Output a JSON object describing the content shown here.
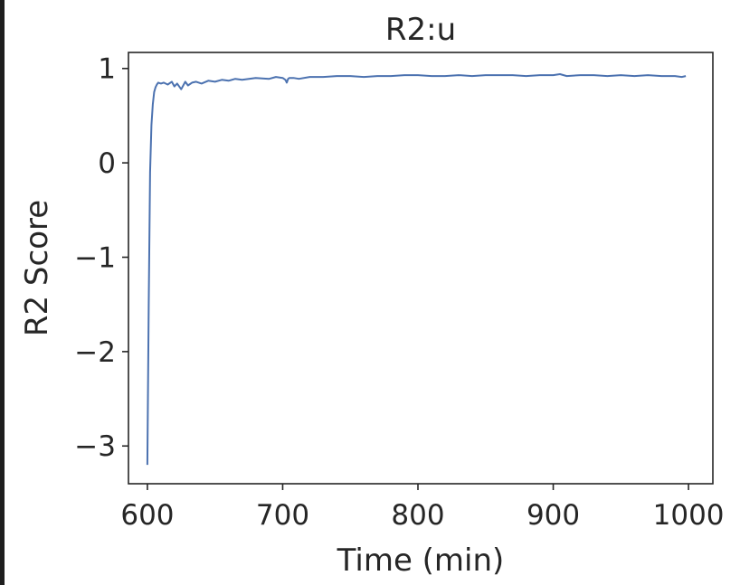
{
  "chart_data": {
    "type": "line",
    "title": "R2:u",
    "xlabel": "Time (min)",
    "ylabel": "R2 Score",
    "xlim": [
      586,
      1018
    ],
    "ylim": [
      -3.4,
      1.17
    ],
    "x_ticks": [
      600,
      700,
      800,
      900,
      1000
    ],
    "x_tick_labels": [
      "600",
      "700",
      "800",
      "900",
      "1000"
    ],
    "y_ticks": [
      1,
      0,
      -1,
      -2,
      -3
    ],
    "y_tick_labels": [
      "1",
      "0",
      "−1",
      "−2",
      "−3"
    ],
    "grid": false,
    "legend": "none",
    "line_color": "#4c72b0",
    "series": [
      {
        "x": [
          600,
          601,
          602,
          603,
          604,
          605,
          606,
          607,
          608,
          610,
          612,
          615,
          618,
          620,
          622,
          625,
          628,
          630,
          633,
          636,
          640,
          645,
          650,
          655,
          660,
          665,
          670,
          680,
          690,
          695,
          700,
          702,
          703,
          704,
          705,
          708,
          712,
          720,
          730,
          740,
          750,
          760,
          770,
          780,
          790,
          800,
          810,
          820,
          830,
          840,
          850,
          860,
          870,
          880,
          890,
          900,
          905,
          910,
          920,
          930,
          940,
          950,
          960,
          970,
          980,
          990,
          995,
          998
        ],
        "y": [
          -3.2,
          -1.5,
          -0.1,
          0.4,
          0.62,
          0.75,
          0.8,
          0.83,
          0.85,
          0.84,
          0.85,
          0.83,
          0.86,
          0.81,
          0.84,
          0.78,
          0.86,
          0.82,
          0.85,
          0.86,
          0.84,
          0.87,
          0.86,
          0.88,
          0.87,
          0.89,
          0.88,
          0.9,
          0.89,
          0.91,
          0.9,
          0.88,
          0.85,
          0.89,
          0.9,
          0.9,
          0.89,
          0.91,
          0.91,
          0.92,
          0.92,
          0.91,
          0.92,
          0.92,
          0.93,
          0.93,
          0.92,
          0.92,
          0.93,
          0.92,
          0.93,
          0.93,
          0.93,
          0.92,
          0.93,
          0.93,
          0.94,
          0.92,
          0.93,
          0.93,
          0.92,
          0.93,
          0.92,
          0.93,
          0.92,
          0.92,
          0.91,
          0.92
        ]
      }
    ]
  }
}
